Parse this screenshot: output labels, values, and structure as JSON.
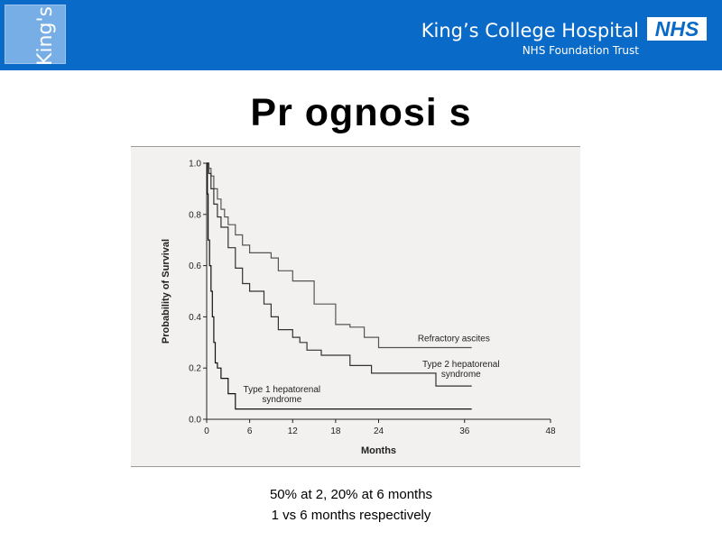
{
  "header": {
    "logo_text": "King's",
    "hospital_name": "King’s College Hospital",
    "trust_name": "NHS Foundation Trust",
    "nhs_badge": "NHS",
    "bg_color": "#0a6ac8"
  },
  "slide": {
    "title": "Pr ognosi s",
    "caption_line1": "50% at 2, 20% at 6 months",
    "caption_line2": "1 vs 6 months respectively"
  },
  "chart_data": {
    "type": "line",
    "step": true,
    "xlabel": "Months",
    "ylabel": "Probability of Survival",
    "xlim": [
      0,
      48
    ],
    "ylim": [
      0,
      1
    ],
    "xticks": [
      0,
      6,
      12,
      18,
      24,
      36,
      48
    ],
    "yticks": [
      0.0,
      0.2,
      0.4,
      0.6,
      0.8,
      1.0
    ],
    "ytick_labels": [
      "0.0",
      "0.2",
      "0.4",
      "0.6",
      "0.8",
      "1.0"
    ],
    "grid": false,
    "series": [
      {
        "name": "Refractory ascites",
        "color": "#555555",
        "x": [
          0,
          0.3,
          0.6,
          1,
          1.5,
          2,
          2.5,
          3,
          4,
          5,
          6,
          9,
          10,
          12,
          15,
          18,
          20,
          22,
          24,
          30,
          37
        ],
        "y": [
          1.0,
          0.98,
          0.95,
          0.9,
          0.86,
          0.82,
          0.79,
          0.76,
          0.72,
          0.68,
          0.65,
          0.63,
          0.58,
          0.54,
          0.45,
          0.37,
          0.36,
          0.32,
          0.28,
          0.28,
          0.28
        ]
      },
      {
        "name": "Type 2 hepatorenal syndrome",
        "color": "#333333",
        "x": [
          0,
          0.3,
          0.6,
          1,
          1.5,
          2,
          3,
          4,
          5,
          6,
          8,
          9,
          10,
          12,
          13,
          14,
          16,
          20,
          23,
          28,
          32,
          37
        ],
        "y": [
          1.0,
          0.96,
          0.9,
          0.84,
          0.79,
          0.75,
          0.67,
          0.59,
          0.53,
          0.5,
          0.45,
          0.4,
          0.35,
          0.32,
          0.3,
          0.27,
          0.25,
          0.21,
          0.18,
          0.18,
          0.13,
          0.13
        ]
      },
      {
        "name": "Type 1 hepatorenal syndrome",
        "color": "#111111",
        "x": [
          0,
          0.1,
          0.2,
          0.4,
          0.6,
          0.8,
          1,
          1.2,
          1.5,
          2,
          3,
          4,
          5,
          10,
          37
        ],
        "y": [
          1.0,
          0.88,
          0.7,
          0.6,
          0.5,
          0.4,
          0.3,
          0.22,
          0.2,
          0.16,
          0.1,
          0.04,
          0.04,
          0.04,
          0.04
        ]
      }
    ],
    "annotations": [
      {
        "series": 0,
        "lines": [
          "Refractory ascites"
        ],
        "x": 34.5,
        "y": 0.305
      },
      {
        "series": 1,
        "lines": [
          "Type 2 hepatorenal",
          "syndrome"
        ],
        "x": 35.5,
        "y": 0.205
      },
      {
        "series": 2,
        "lines": [
          "Type 1 hepatorenal",
          "syndrome"
        ],
        "x": 10.5,
        "y": 0.105
      }
    ]
  }
}
